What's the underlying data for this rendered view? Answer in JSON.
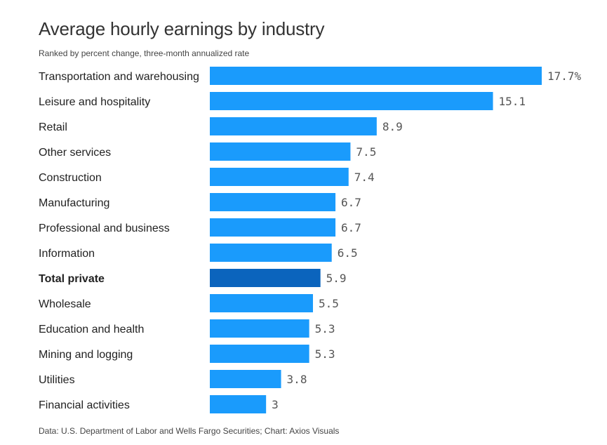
{
  "title": "Average hourly earnings by industry",
  "subtitle": "Ranked by percent change, three-month annualized rate",
  "source": "Data: U.S. Department of Labor and Wells Fargo Securities; Chart: Axios Visuals",
  "colors": {
    "bar": "#1a9bfc",
    "highlight": "#0b64bd"
  },
  "chart_data": {
    "type": "bar",
    "orientation": "horizontal",
    "title": "Average hourly earnings by industry",
    "subtitle": "Ranked by percent change, three-month annualized rate",
    "xlim": [
      0,
      17.7
    ],
    "grid": false,
    "categories": [
      "Transportation and warehousing",
      "Leisure and hospitality",
      "Retail",
      "Other services",
      "Construction",
      "Manufacturing",
      "Professional and business",
      "Information",
      "Total private",
      "Wholesale",
      "Education and health",
      "Mining and logging",
      "Utilities",
      "Financial activities"
    ],
    "values": [
      17.7,
      15.1,
      8.9,
      7.5,
      7.4,
      6.7,
      6.7,
      6.5,
      5.9,
      5.5,
      5.3,
      5.3,
      3.8,
      3
    ],
    "value_labels": [
      "17.7%",
      "15.1",
      "8.9",
      "7.5",
      "7.4",
      "6.7",
      "6.7",
      "6.5",
      "5.9",
      "5.5",
      "5.3",
      "5.3",
      "3.8",
      "3"
    ],
    "highlight": "Total private"
  }
}
